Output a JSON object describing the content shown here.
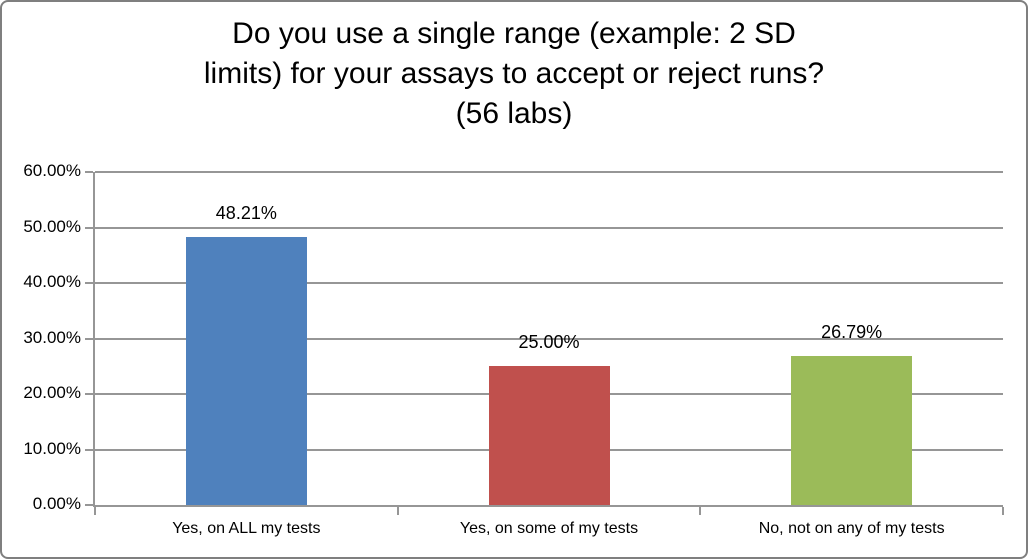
{
  "chart_data": {
    "type": "bar",
    "title": "Do you use a single range (example: 2 SD\nlimits) for your assays to accept or reject runs?\n(56 labs)",
    "categories": [
      "Yes, on ALL my tests",
      "Yes, on some of my tests",
      "No, not on any of my tests"
    ],
    "values": [
      48.21,
      25.0,
      26.79
    ],
    "value_labels": [
      "48.21%",
      "25.00%",
      "26.79%"
    ],
    "bar_colors": [
      "#4F81BD",
      "#C0504D",
      "#9BBB59"
    ],
    "xlabel": "",
    "ylabel": "",
    "ylim": [
      0,
      60
    ],
    "y_tick_labels": [
      "0.00%",
      "10.00%",
      "20.00%",
      "30.00%",
      "40.00%",
      "50.00%",
      "60.00%"
    ],
    "grid": true,
    "legend": false,
    "colors": {
      "gridline": "#969696",
      "axis": "#969696",
      "chart_border": "#7F7F7F",
      "background": "#FFFFFF",
      "text": "#000000"
    }
  }
}
